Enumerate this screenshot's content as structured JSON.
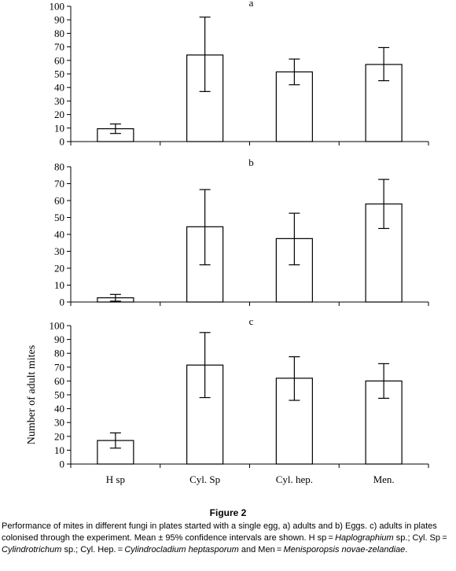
{
  "chart_data": [
    {
      "type": "bar",
      "panel_label": "a",
      "categories": [
        "H sp",
        "Cyl. Sp",
        "Cyl. hep.",
        "Men."
      ],
      "values": [
        9.5,
        64,
        51.5,
        57
      ],
      "error_low": [
        6,
        37,
        42,
        45
      ],
      "error_high": [
        13,
        92,
        61,
        69.5
      ],
      "ylim": [
        0,
        100
      ],
      "yticks": [
        0,
        10,
        20,
        30,
        40,
        50,
        60,
        70,
        80,
        90,
        100
      ],
      "ylabel": "",
      "show_xlabels": false
    },
    {
      "type": "bar",
      "panel_label": "b",
      "categories": [
        "H sp",
        "Cyl. Sp",
        "Cyl. hep.",
        "Men."
      ],
      "values": [
        2.5,
        44.5,
        37.5,
        58
      ],
      "error_low": [
        0.5,
        22,
        22,
        43.5
      ],
      "error_high": [
        4.5,
        66.5,
        52.5,
        72.5
      ],
      "ylim": [
        0,
        80
      ],
      "yticks": [
        0,
        10,
        20,
        30,
        40,
        50,
        60,
        70,
        80
      ],
      "ylabel": "",
      "show_xlabels": false
    },
    {
      "type": "bar",
      "panel_label": "c",
      "categories": [
        "H sp",
        "Cyl. Sp",
        "Cyl. hep.",
        "Men."
      ],
      "values": [
        17,
        71.5,
        62,
        60
      ],
      "error_low": [
        11.5,
        48,
        46,
        47.5
      ],
      "error_high": [
        22.5,
        95,
        77.5,
        72.5
      ],
      "ylim": [
        0,
        100
      ],
      "yticks": [
        0,
        10,
        20,
        30,
        40,
        50,
        60,
        70,
        80,
        90,
        100
      ],
      "ylabel": "Number of adult mites",
      "show_xlabels": true
    }
  ],
  "caption": {
    "title": "Figure 2",
    "parts": [
      {
        "text": "Performance of mites in different fungi in plates started with a single egg, a) adults and b) Eggs. c) adults in plates colonised through the experiment. Mean ± 95% confidence intervals are shown. H sp = ",
        "italic": false
      },
      {
        "text": "Haplographium",
        "italic": true
      },
      {
        "text": " sp.; Cyl. Sp = ",
        "italic": false
      },
      {
        "text": "Cylindrotrichum",
        "italic": true
      },
      {
        "text": " sp.; Cyl. Hep. = ",
        "italic": false
      },
      {
        "text": "Cylindrocladium heptasporum",
        "italic": true
      },
      {
        "text": " and Men = ",
        "italic": false
      },
      {
        "text": "Menisporopsis novae-zelandiae",
        "italic": true
      },
      {
        "text": ".",
        "italic": false
      }
    ]
  }
}
